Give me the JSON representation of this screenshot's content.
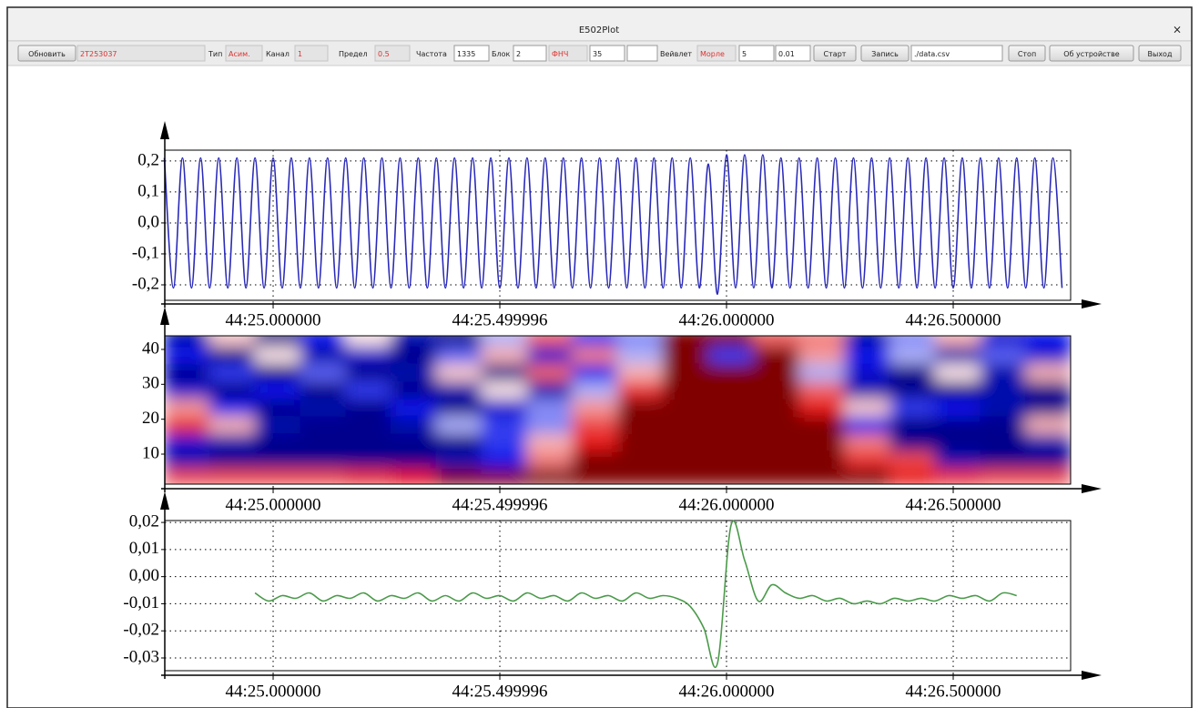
{
  "window": {
    "title": "E502Plot",
    "close": "×"
  },
  "toolbar": [
    "Обновить",
    "2T253037",
    "Тип",
    "Асим.",
    "Канал",
    "1",
    "Предел",
    "0.5",
    "Частота",
    "1335",
    "Блок",
    "2",
    "ФНЧ",
    "35",
    "Вейвлет",
    "Морле",
    "5",
    "0.01",
    "Старт",
    "Запись",
    "./data.csv",
    "Стоп",
    "Об устройстве",
    "Выход"
  ],
  "chart_data": [
    {
      "type": "line",
      "color": "#2a2ab8",
      "grid": true,
      "x": [
        24.76,
        24.78,
        24.8,
        24.82,
        24.84,
        24.86,
        24.88,
        24.9,
        24.92,
        24.94,
        24.96,
        24.98,
        25,
        25.02,
        25.04,
        25.06,
        25.08,
        25.1,
        25.12,
        25.14,
        25.16,
        25.18,
        25.2,
        25.22,
        25.24,
        25.26,
        25.28,
        25.3,
        25.32,
        25.34,
        25.36,
        25.38,
        25.4,
        25.42,
        25.44,
        25.46,
        25.48,
        25.5,
        25.52,
        25.54,
        25.56,
        25.58,
        25.6,
        25.62,
        25.64,
        25.66,
        25.68,
        25.7,
        25.72,
        25.74,
        25.76,
        25.78,
        25.8,
        25.82,
        25.84,
        25.86,
        25.88,
        25.9,
        25.92,
        25.94,
        25.96,
        25.98,
        26,
        26.02,
        26.04,
        26.06,
        26.08,
        26.1,
        26.12,
        26.14,
        26.16,
        26.18,
        26.2,
        26.22,
        26.24,
        26.26,
        26.28,
        26.3,
        26.32,
        26.34,
        26.36,
        26.38,
        26.4,
        26.42,
        26.44,
        26.46,
        26.48,
        26.5,
        26.52,
        26.54,
        26.56,
        26.58,
        26.6,
        26.62,
        26.64,
        26.66,
        26.68,
        26.7,
        26.72,
        26.74
      ],
      "values": [
        0.21,
        -0.21,
        0.21,
        -0.21,
        0.21,
        -0.21,
        0.21,
        -0.21,
        0.21,
        -0.21,
        0.21,
        -0.21,
        0.21,
        -0.21,
        0.21,
        -0.21,
        0.21,
        -0.21,
        0.21,
        -0.21,
        0.21,
        -0.21,
        0.21,
        -0.21,
        0.21,
        -0.21,
        0.21,
        -0.21,
        0.21,
        -0.21,
        0.21,
        -0.21,
        0.21,
        -0.21,
        0.21,
        -0.21,
        0.21,
        -0.21,
        0.21,
        -0.21,
        0.21,
        -0.21,
        0.21,
        -0.21,
        0.21,
        -0.21,
        0.21,
        -0.21,
        0.21,
        -0.21,
        0.21,
        -0.21,
        0.21,
        -0.21,
        0.21,
        -0.21,
        0.21,
        -0.21,
        0.21,
        -0.21,
        0.19,
        -0.23,
        0.22,
        -0.21,
        0.22,
        -0.21,
        0.22,
        -0.21,
        0.21,
        -0.21,
        0.21,
        -0.21,
        0.21,
        -0.21,
        0.21,
        -0.21,
        0.21,
        -0.21,
        0.21,
        -0.21,
        0.21,
        -0.21,
        0.21,
        -0.21,
        0.21,
        -0.21,
        0.21,
        -0.21,
        0.21,
        -0.21,
        0.21,
        -0.21,
        0.21,
        -0.21,
        0.21,
        -0.21,
        0.21,
        -0.21,
        0.21,
        -0.21
      ],
      "xlim": [
        24.761,
        26.759
      ],
      "ylim": [
        -0.25,
        0.235
      ],
      "xticks": [
        {
          "value": 25,
          "label": "44:25.000000"
        },
        {
          "value": 25.499996,
          "label": "44:25.499996"
        },
        {
          "value": 26,
          "label": "44:26.000000"
        },
        {
          "value": 26.5,
          "label": "44:26.500000"
        }
      ],
      "yticks": [
        {
          "value": -0.2,
          "label": "-0,2"
        },
        {
          "value": -0.1,
          "label": "-0,1"
        },
        {
          "value": 0,
          "label": "0,0"
        },
        {
          "value": 0.1,
          "label": "0,1"
        },
        {
          "value": 0.2,
          "label": "0,2"
        }
      ]
    },
    {
      "type": "heatmap",
      "grid": false,
      "x": [
        24.81,
        24.91,
        25.01,
        25.11,
        25.21,
        25.31,
        25.41,
        25.51,
        25.61,
        25.71,
        25.81,
        25.91,
        26.01,
        26.11,
        26.21,
        26.31,
        26.41,
        26.51,
        26.61,
        26.71
      ],
      "y": [
        3.5,
        8.5,
        13.5,
        18.5,
        23.5,
        28.5,
        33.5,
        38.5,
        43.5
      ],
      "values": [
        [
          0.7,
          0.7,
          0.7,
          0.7,
          0.8,
          0.9,
          1,
          1,
          1,
          1,
          1,
          1,
          1,
          1,
          1,
          1,
          0.9,
          0.8,
          0.7,
          0.7
        ],
        [
          -0.8,
          -0.9,
          -0.9,
          -0.9,
          -0.9,
          -0.9,
          -0.8,
          -0.6,
          0.5,
          1,
          1,
          1,
          1,
          1,
          1,
          0.8,
          0.7,
          -0.8,
          -0.9,
          -0.9
        ],
        [
          -0.7,
          -0.8,
          -0.9,
          -0.9,
          -0.9,
          -0.9,
          -0.9,
          -0.5,
          0.3,
          0.9,
          1,
          1,
          1,
          1,
          1,
          0.5,
          -0.9,
          -0.9,
          -0.9,
          -0.8
        ],
        [
          0.8,
          0.3,
          -0.8,
          -0.9,
          -0.9,
          -0.8,
          -0.2,
          -0.5,
          -0.3,
          0.7,
          1,
          1,
          1,
          1,
          1,
          -0.6,
          -0.9,
          -0.9,
          -0.9,
          0.3
        ],
        [
          0.4,
          -0.6,
          -0.9,
          -0.8,
          -0.9,
          -0.6,
          -0.9,
          -0.7,
          -0.3,
          0.4,
          1,
          1,
          1,
          1,
          0.9,
          0.2,
          -0.5,
          -0.6,
          -0.8,
          -0.9
        ],
        [
          -0.7,
          -0.9,
          -0.6,
          -0.9,
          -0.5,
          -0.9,
          -0.8,
          0.1,
          -0.8,
          -0.2,
          0.8,
          1,
          1,
          1,
          0.6,
          -0.8,
          -0.9,
          -0.9,
          -0.8,
          -0.9
        ],
        [
          -0.9,
          -0.5,
          -0.9,
          -0.4,
          -0.9,
          -0.8,
          0.2,
          -0.9,
          0.6,
          -0.6,
          0.3,
          1,
          1,
          1,
          -0.2,
          -0.7,
          -0.9,
          0.1,
          -0.8,
          0.3
        ],
        [
          -0.6,
          -0.9,
          0.1,
          -0.8,
          -0.7,
          -0.9,
          -0.4,
          0.3,
          -0.7,
          0.5,
          -0.2,
          1,
          -0.5,
          1,
          0.4,
          -0.6,
          -0.2,
          -0.8,
          -0.4,
          -0.7
        ],
        [
          -0.8,
          0.2,
          -0.9,
          -0.6,
          0.1,
          -0.8,
          -0.9,
          -0.2,
          0.6,
          -0.5,
          -0.3,
          1,
          1,
          0.6,
          0.5,
          -0.8,
          -0.3,
          0.3,
          -0.7,
          -0.6
        ]
      ],
      "xlim": [
        24.761,
        26.759
      ],
      "ylim": [
        1.4,
        43.9
      ],
      "xticks": [
        {
          "value": 25,
          "label": "44:25.000000"
        },
        {
          "value": 25.499996,
          "label": "44:25.499996"
        },
        {
          "value": 26,
          "label": "44:26.000000"
        },
        {
          "value": 26.5,
          "label": "44:26.500000"
        }
      ],
      "yticks": [
        10,
        20,
        30,
        40
      ]
    },
    {
      "type": "line",
      "color": "#4a9a4a",
      "grid": true,
      "x": [
        24.96,
        24.99,
        25.02,
        25.05,
        25.08,
        25.11,
        25.14,
        25.17,
        25.2,
        25.23,
        25.26,
        25.29,
        25.32,
        25.35,
        25.38,
        25.41,
        25.44,
        25.47,
        25.5,
        25.53,
        25.56,
        25.59,
        25.62,
        25.65,
        25.68,
        25.71,
        25.74,
        25.77,
        25.8,
        25.83,
        25.86,
        25.89,
        25.92,
        25.95,
        25.98,
        26.01,
        26.04,
        26.07,
        26.1,
        26.13,
        26.16,
        26.19,
        26.22,
        26.25,
        26.28,
        26.31,
        26.34,
        26.37,
        26.4,
        26.43,
        26.46,
        26.49,
        26.52,
        26.55,
        26.58,
        26.61,
        26.64
      ],
      "values": [
        -0.006,
        -0.009,
        -0.007,
        -0.008,
        -0.006,
        -0.009,
        -0.007,
        -0.008,
        -0.006,
        -0.009,
        -0.007,
        -0.008,
        -0.006,
        -0.009,
        -0.007,
        -0.009,
        -0.006,
        -0.008,
        -0.007,
        -0.009,
        -0.006,
        -0.008,
        -0.007,
        -0.009,
        -0.006,
        -0.008,
        -0.007,
        -0.009,
        -0.006,
        -0.008,
        -0.007,
        -0.008,
        -0.011,
        -0.019,
        -0.032,
        0.019,
        0.006,
        -0.009,
        -0.003,
        -0.006,
        -0.008,
        -0.007,
        -0.009,
        -0.008,
        -0.01,
        -0.009,
        -0.01,
        -0.008,
        -0.009,
        -0.008,
        -0.009,
        -0.007,
        -0.008,
        -0.007,
        -0.009,
        -0.006,
        -0.007
      ],
      "xlim": [
        24.761,
        26.759
      ],
      "ylim": [
        -0.0347,
        0.0207
      ],
      "xticks": [
        {
          "value": 25,
          "label": "44:25.000000"
        },
        {
          "value": 25.499996,
          "label": "44:25.499996"
        },
        {
          "value": 26,
          "label": "44:26.000000"
        },
        {
          "value": 26.5,
          "label": "44:26.500000"
        }
      ],
      "yticks": [
        {
          "value": -0.03,
          "label": "-0,03"
        },
        {
          "value": -0.02,
          "label": "-0,02"
        },
        {
          "value": -0.01,
          "label": "-0,01"
        },
        {
          "value": 0,
          "label": "0,00"
        },
        {
          "value": 0.01,
          "label": "0,01"
        },
        {
          "value": 0.02,
          "label": "0,02"
        }
      ]
    }
  ]
}
